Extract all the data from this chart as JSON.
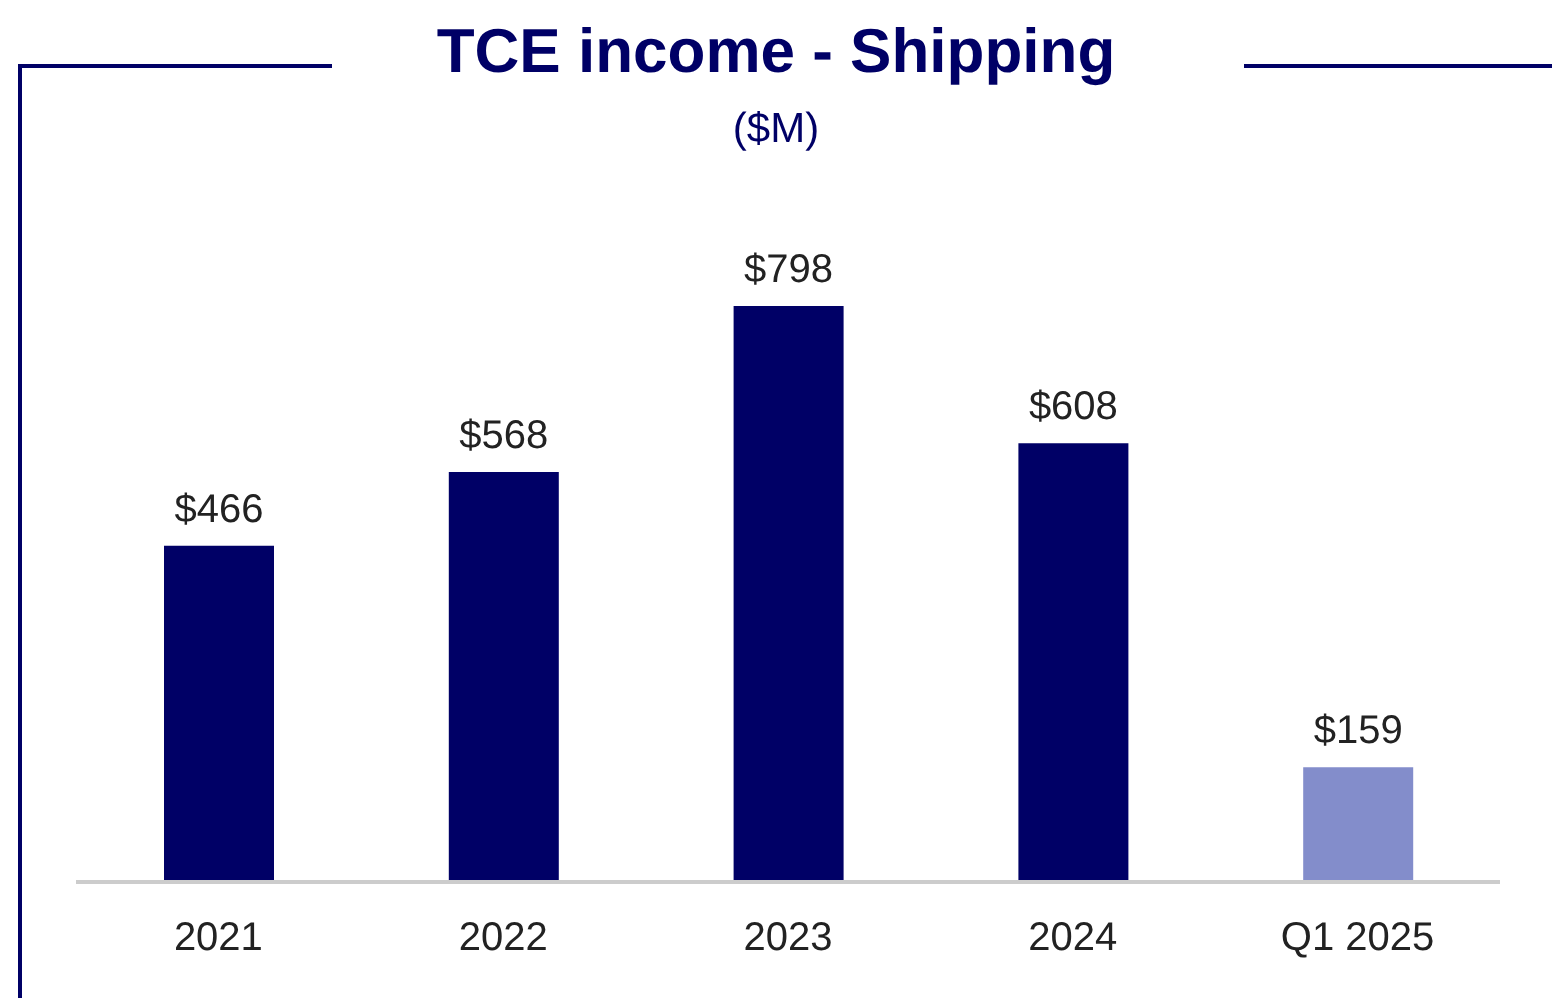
{
  "chart_data": {
    "type": "bar",
    "title": "TCE income - Shipping",
    "subtitle": "($M)",
    "categories": [
      "2021",
      "2022",
      "2023",
      "2024",
      "Q1 2025"
    ],
    "values": [
      466,
      568,
      798,
      608,
      159
    ],
    "colors": [
      "#000066",
      "#000066",
      "#000066",
      "#000066",
      "#838dcb"
    ],
    "value_labels": [
      "$466",
      "$568",
      "$798",
      "$608",
      "$159"
    ]
  }
}
